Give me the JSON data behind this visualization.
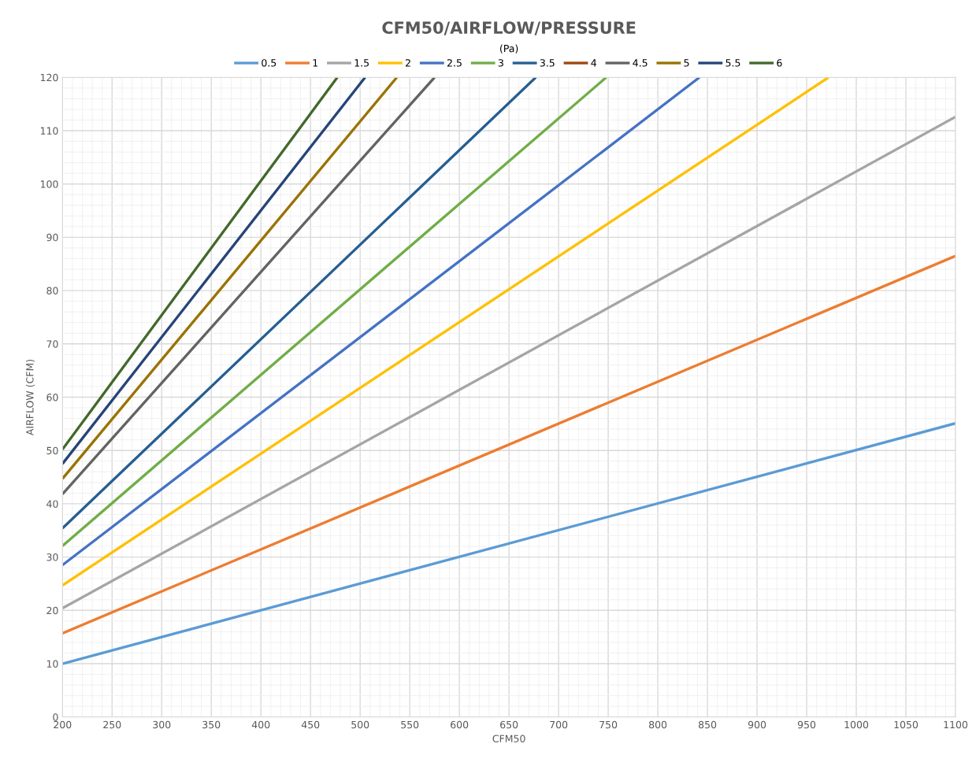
{
  "chart_data": {
    "type": "line",
    "title": "CFM50/AIRFLOW/PRESSURE",
    "xlabel": "CFM50",
    "ylabel": "AIRFLOW (CFM)",
    "legend_title": "(Pa)",
    "legend": "top",
    "grid": true,
    "marker": "none",
    "line_style": "solid",
    "xlim": [
      200,
      1100
    ],
    "xticks": [
      200,
      250,
      300,
      350,
      400,
      450,
      500,
      550,
      600,
      650,
      700,
      750,
      800,
      850,
      900,
      950,
      1000,
      1050,
      1100
    ],
    "ylim": [
      0,
      120
    ],
    "yticks": [
      0,
      10,
      20,
      30,
      40,
      50,
      60,
      70,
      80,
      90,
      100,
      110,
      120
    ],
    "series": [
      {
        "name": "0.5",
        "color": "#5b9bd5",
        "x": [
          200,
          1100
        ],
        "values": [
          10.0,
          55.1
        ]
      },
      {
        "name": "1",
        "color": "#ed7d31",
        "x": [
          200,
          1100
        ],
        "values": [
          15.7,
          86.5
        ]
      },
      {
        "name": "1.5",
        "color": "#a5a5a5",
        "x": [
          200,
          1100
        ],
        "values": [
          20.4,
          112.6
        ]
      },
      {
        "name": "2",
        "color": "#ffc000",
        "x": [
          200,
          972
        ],
        "values": [
          24.7,
          120
        ]
      },
      {
        "name": "2.5",
        "color": "#4472c4",
        "x": [
          200,
          842
        ],
        "values": [
          28.5,
          120
        ]
      },
      {
        "name": "3",
        "color": "#70ad47",
        "x": [
          200,
          748
        ],
        "values": [
          32.1,
          120
        ]
      },
      {
        "name": "3.5",
        "color": "#255e91",
        "x": [
          200,
          677
        ],
        "values": [
          35.4,
          120
        ]
      },
      {
        "name": "4",
        "color": "#9e480e"
      },
      {
        "name": "4.5",
        "color": "#636363",
        "x": [
          200,
          575
        ],
        "values": [
          41.8,
          120
        ]
      },
      {
        "name": "5",
        "color": "#997300",
        "x": [
          200,
          537
        ],
        "values": [
          44.7,
          120
        ]
      },
      {
        "name": "5.5",
        "color": "#264478",
        "x": [
          200,
          505
        ],
        "values": [
          47.5,
          120
        ]
      },
      {
        "name": "6",
        "color": "#43682b",
        "x": [
          200,
          477
        ],
        "values": [
          50.2,
          120
        ]
      }
    ]
  }
}
